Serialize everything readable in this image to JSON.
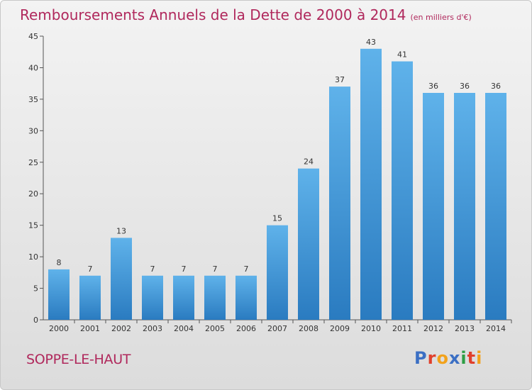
{
  "title": "Remboursements Annuels de la Dette de 2000 à 2014",
  "subtitle": "(en milliers d'€)",
  "place": "SOPPE-LE-HAUT",
  "logo": {
    "text": "Proxiti",
    "letters": [
      "P",
      "r",
      "o",
      "x",
      "i",
      "t",
      "i"
    ],
    "colors": [
      "#3b6fc4",
      "#e0402c",
      "#f2a21b",
      "#3b6fc4",
      "#2e9e45",
      "#e0402c",
      "#f2a21b"
    ]
  },
  "colors": {
    "title": "#b0285c",
    "bar_top": "#5fb2ea",
    "bar_bottom": "#2a7bc0"
  },
  "chart_data": {
    "type": "bar",
    "categories": [
      "2000",
      "2001",
      "2002",
      "2003",
      "2004",
      "2005",
      "2006",
      "2007",
      "2008",
      "2009",
      "2010",
      "2011",
      "2012",
      "2013",
      "2014"
    ],
    "values": [
      8,
      7,
      13,
      7,
      7,
      7,
      7,
      15,
      24,
      37,
      43,
      41,
      36,
      36,
      36
    ],
    "ylim": [
      0,
      45
    ],
    "yticks": [
      0,
      5,
      10,
      15,
      20,
      25,
      30,
      35,
      40,
      45
    ],
    "grid": false,
    "legend": "none"
  }
}
